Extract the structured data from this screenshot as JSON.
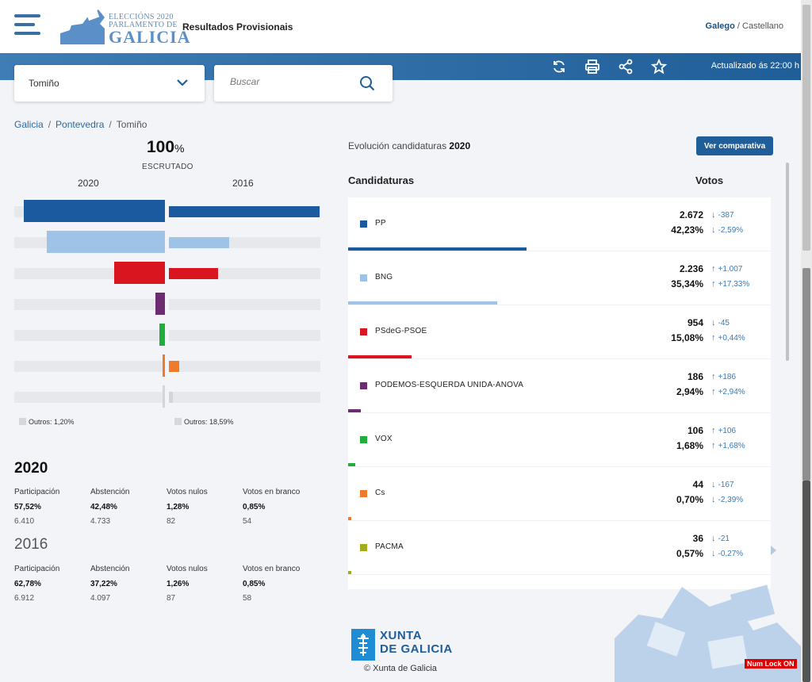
{
  "header": {
    "logo": {
      "line1": "ELECCIÓNS 2020",
      "line2": "PARLAMENTO DE",
      "line3": "GALICIA"
    },
    "app_title": "Resultados Provisionais",
    "lang_active": "Galego",
    "lang_sep": "/",
    "lang_other": "Castellano"
  },
  "toolbar": {
    "icons": [
      "refresh-icon",
      "print-icon",
      "share-icon",
      "star-icon"
    ],
    "updated": "Actualizado ás 22:00 h"
  },
  "filters": {
    "location_value": "Tomiño",
    "search_placeholder": "Buscar"
  },
  "breadcrumb": {
    "items": [
      "Galicia",
      "Pontevedra",
      "Tomiño"
    ],
    "sep": "/"
  },
  "summary": {
    "scrutiny_value": "100",
    "scrutiny_unit": "%",
    "scrutiny_label": "ESCRUTADO",
    "year_left": "2020",
    "year_right": "2016",
    "others_left": "Outros: 1,20%",
    "others_right": "Outros: 18,59%"
  },
  "chart_data": {
    "type": "bar",
    "categories": [
      "PP",
      "BNG",
      "PSdeG-PSOE",
      "PODEMOS-ESQUERDA UNIDA-ANOVA",
      "VOX",
      "Cs",
      "PACMA"
    ],
    "series": [
      {
        "name": "2020",
        "values": [
          42.23,
          35.34,
          15.08,
          2.94,
          1.68,
          0.7,
          0.57
        ]
      },
      {
        "name": "2016",
        "values": [
          44.82,
          18.01,
          14.64,
          0,
          0,
          3.09,
          0.84
        ]
      }
    ],
    "colors_2020": [
      "#1b5a9e",
      "#9ec3e6",
      "#d9161f",
      "#6b2c70",
      "#1fad3b",
      "#f07a2a",
      "#d3d5d8"
    ],
    "colors_2016": [
      "#1b5a9e",
      "#9ec3e6",
      "#d9161f",
      "#6b2c70",
      "#1fad3b",
      "#f07a2a",
      "#d3d5d8"
    ]
  },
  "stats": {
    "y2020": {
      "year": "2020",
      "items": [
        {
          "label": "Participación",
          "pct": "57,52%",
          "num": "6.410"
        },
        {
          "label": "Abstención",
          "pct": "42,48%",
          "num": "4.733"
        },
        {
          "label": "Votos nulos",
          "pct": "1,28%",
          "num": "82"
        },
        {
          "label": "Votos en branco",
          "pct": "0,85%",
          "num": "54"
        }
      ]
    },
    "y2016": {
      "year": "2016",
      "items": [
        {
          "label": "Participación",
          "pct": "62,78%",
          "num": "6.912"
        },
        {
          "label": "Abstención",
          "pct": "37,22%",
          "num": "4.097"
        },
        {
          "label": "Votos nulos",
          "pct": "1,26%",
          "num": "87"
        },
        {
          "label": "Votos en branco",
          "pct": "0,85%",
          "num": "58"
        }
      ]
    }
  },
  "evolution": {
    "label": "Evolución candidaturas",
    "year": "2020",
    "compare_button": "Ver comparativa",
    "col_candidates": "Candidaturas",
    "col_votes": "Votos"
  },
  "candidates": [
    {
      "name": "PP",
      "color": "#1b5a9e",
      "votes": "2.672",
      "pct": "42,23%",
      "dvotes": "-387",
      "dpct": "-2,59%",
      "dir_v": "down",
      "dir_p": "down",
      "share": 0.4223
    },
    {
      "name": "BNG",
      "color": "#9ec3e6",
      "votes": "2.236",
      "pct": "35,34%",
      "dvotes": "+1.007",
      "dpct": "+17,33%",
      "dir_v": "up",
      "dir_p": "up",
      "share": 0.3534
    },
    {
      "name": "PSdeG-PSOE",
      "color": "#d9161f",
      "votes": "954",
      "pct": "15,08%",
      "dvotes": "-45",
      "dpct": "+0,44%",
      "dir_v": "down",
      "dir_p": "up",
      "share": 0.1508
    },
    {
      "name": "PODEMOS-ESQUERDA UNIDA-ANOVA",
      "color": "#6b2c70",
      "votes": "186",
      "pct": "2,94%",
      "dvotes": "+186",
      "dpct": "+2,94%",
      "dir_v": "up",
      "dir_p": "up",
      "share": 0.0294
    },
    {
      "name": "VOX",
      "color": "#1fad3b",
      "votes": "106",
      "pct": "1,68%",
      "dvotes": "+106",
      "dpct": "+1,68%",
      "dir_v": "up",
      "dir_p": "up",
      "share": 0.0168
    },
    {
      "name": "Cs",
      "color": "#f07a2a",
      "votes": "44",
      "pct": "0,70%",
      "dvotes": "-167",
      "dpct": "-2,39%",
      "dir_v": "down",
      "dir_p": "down",
      "share": 0.007
    },
    {
      "name": "PACMA",
      "color": "#a2ad1d",
      "votes": "36",
      "pct": "0,57%",
      "dvotes": "-21",
      "dpct": "-0,27%",
      "dir_v": "down",
      "dir_p": "down",
      "share": 0.0057
    }
  ],
  "footer": {
    "xunta_line1": "XUNTA",
    "xunta_line2": "DE GALICIA",
    "copyright": "© Xunta de Galicia",
    "numlock": "Num Lock ON"
  }
}
